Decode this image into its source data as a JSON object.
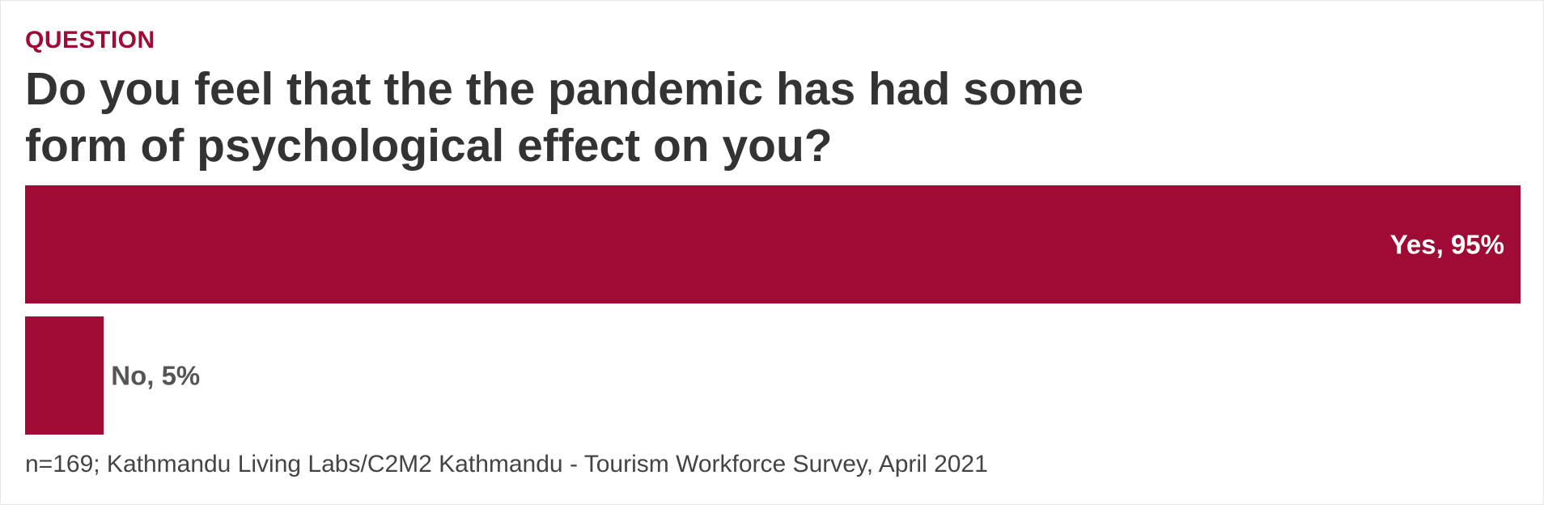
{
  "header": {
    "eyebrow": "QUESTION",
    "title": "Do you feel that the the pandemic has had some form of psychological effect on you?"
  },
  "footer": {
    "source": "n=169; Kathmandu Living Labs/C2M2 Kathmandu - Tourism Workforce Survey, April 2021"
  },
  "colors": {
    "accent": "#a00b35",
    "title": "#333333",
    "label_outside": "#555555",
    "label_inside": "#ffffff",
    "source": "#444444"
  },
  "chart_data": {
    "type": "bar",
    "orientation": "horizontal",
    "categories": [
      "Yes",
      "No"
    ],
    "values": [
      95,
      5
    ],
    "value_labels": [
      "Yes, 95%",
      "No, 5%"
    ],
    "unit": "%",
    "xlim": [
      0,
      95
    ],
    "grid": false,
    "legend": "none"
  }
}
